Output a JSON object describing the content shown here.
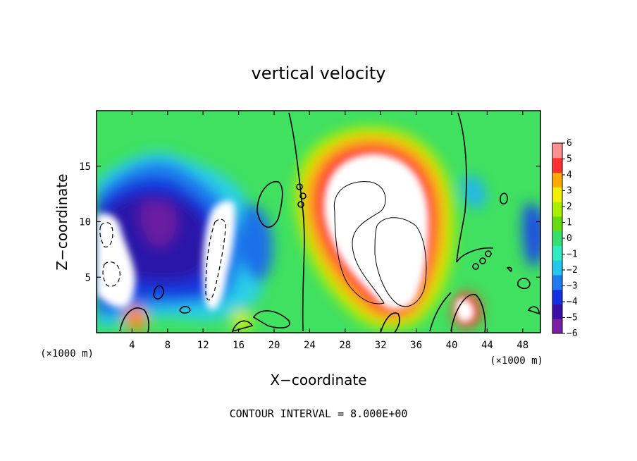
{
  "chart_data": {
    "type": "heatmap",
    "title": "vertical velocity",
    "xlabel": "X−coordinate",
    "ylabel": "Z−coordinate",
    "x_unit_label": "(×1000 m)",
    "z_unit_label": "(×1000 m)",
    "xlim": [
      0,
      50
    ],
    "ylim": [
      0,
      20
    ],
    "x_ticks": [
      4,
      8,
      12,
      16,
      20,
      24,
      28,
      32,
      36,
      40,
      44,
      48
    ],
    "y_ticks": [
      5,
      10,
      15
    ],
    "colorbar": {
      "min": -6,
      "max": 6,
      "ticks": [
        6,
        5,
        4,
        3,
        2,
        1,
        0,
        -1,
        -2,
        -3,
        -4,
        -5,
        -6
      ],
      "tick_labels": [
        "6",
        "5",
        "4",
        "3",
        "2",
        "1",
        "0",
        "−1",
        "−2",
        "−3",
        "−4",
        "−5",
        "−6"
      ],
      "saturated_above_color": "#ffffff",
      "saturated_below_color": "#ffffff"
    },
    "features": [
      {
        "kind": "updraft",
        "x": 33.0,
        "z": 9.5,
        "value": 12
      },
      {
        "kind": "updraft_core_secondary",
        "x": 36.5,
        "z": 7.5,
        "value": 9
      },
      {
        "kind": "updraft_small",
        "x": 41.0,
        "z": 2.0,
        "value": 9
      },
      {
        "kind": "updraft_small",
        "x": 4.8,
        "z": 1.0,
        "value": 5
      },
      {
        "kind": "downdraft",
        "x": 2.0,
        "z": 6.5,
        "value": -12
      },
      {
        "kind": "downdraft",
        "x": 13.5,
        "z": 7.0,
        "value": -12
      },
      {
        "kind": "downdraft_band",
        "x": 8.0,
        "z": 11.0,
        "value": -5
      },
      {
        "kind": "downdraft_band",
        "x": 3.5,
        "z": 14.5,
        "value": -4
      }
    ],
    "contour_interval": 8.0,
    "contour_interval_label": "CONTOUR INTERVAL = 8.000E+00"
  },
  "colors": {
    "cbar": [
      "#7a1fa2",
      "#3a0fa8",
      "#1530e0",
      "#1e7cf0",
      "#25c8ec",
      "#30ecc4",
      "#36e070",
      "#66dd10",
      "#aaee00",
      "#f0f000",
      "#ffaa00",
      "#ff3030",
      "#ff9090"
    ]
  }
}
